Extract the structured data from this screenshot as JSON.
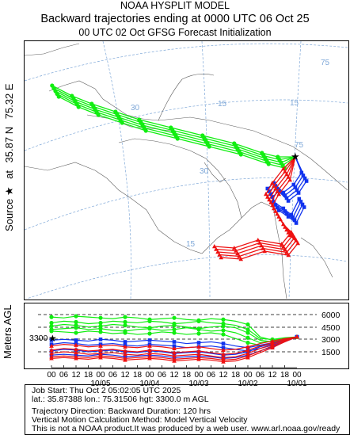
{
  "header": {
    "model": "NOAA HYSPLIT MODEL",
    "title": "Backward trajectories ending at 0000 UTC 06 Oct 25",
    "subtitle": "00 UTC 02 Oct    GFSG  Forecast Initialization"
  },
  "side_label": {
    "source": "Source",
    "at": "at",
    "lat": "35.87 N",
    "lon": "75.32 E",
    "height_axis": "Meters AGL"
  },
  "map": {
    "lat_labels": [
      "30",
      "30",
      "15",
      "15"
    ],
    "lon_labels": [
      "75",
      "75",
      "15"
    ]
  },
  "info": {
    "line1": "Job Start: Thu Oct  2 05:02:05 UTC 2025",
    "line2": "lat.: 35.87388   lon.: 75.31506   hgt: 3300.0 m AGL",
    "line3": "Trajectory Direction: Backward       Duration: 120 hrs",
    "line4": "Vertical Motion Calculation Method: Model Vertical Velocity",
    "line5": "This is not a NOAA product.It was produced by a web user. www.arl.noaa.gov/ready"
  },
  "colors": {
    "red": "#ee1111",
    "blue": "#1133ee",
    "green": "#11ee11"
  },
  "chart_data": {
    "type": "line",
    "title": "Backward trajectories ending at 0000 UTC 06 Oct 25",
    "ylabel": "Meters AGL",
    "yticks": [
      "6000",
      "4500",
      "3000",
      "1500"
    ],
    "source_height_label": "3300",
    "ylim": [
      0,
      6500
    ],
    "hour_ticks": [
      "18",
      "12",
      "06",
      "00",
      "18",
      "12",
      "06",
      "00",
      "18",
      "12",
      "06",
      "00",
      "18",
      "12",
      "06",
      "00",
      "18",
      "12",
      "06",
      "00"
    ],
    "date_ticks": [
      "10/05",
      "10/04",
      "10/03",
      "10/02",
      "10/01"
    ],
    "x_hours_back": [
      0,
      6,
      12,
      18,
      24,
      30,
      36,
      42,
      48,
      54,
      60,
      66,
      72,
      78,
      84,
      90,
      96,
      102,
      108,
      114,
      120
    ],
    "series": [
      {
        "color": "green",
        "values": [
          3300,
          3100,
          2900,
          3300,
          4800,
          5200,
          5400,
          5500,
          5300,
          5400,
          5600,
          5500,
          5400,
          5600,
          5700,
          5500,
          5600,
          5700,
          5800,
          5600,
          5700
        ]
      },
      {
        "color": "green",
        "values": [
          3300,
          3200,
          3000,
          3100,
          4200,
          4700,
          4900,
          5000,
          5200,
          5000,
          4900,
          5100,
          5200,
          5000,
          5100,
          5200,
          5000,
          4900,
          5100,
          5200,
          5000
        ]
      },
      {
        "color": "green",
        "values": [
          3300,
          3000,
          2700,
          2900,
          3800,
          4400,
          4600,
          4500,
          4300,
          4500,
          4700,
          4600,
          4400,
          4500,
          4700,
          4800,
          4600,
          4500,
          4700,
          4800,
          4600
        ]
      },
      {
        "color": "green",
        "values": [
          3300,
          3100,
          2800,
          2600,
          3200,
          3800,
          4100,
          4000,
          4200,
          4400,
          4200,
          4100,
          4300,
          4200,
          4000,
          4100,
          4300,
          4200,
          4400,
          4300,
          4200
        ]
      },
      {
        "color": "green",
        "values": [
          3300,
          2900,
          2500,
          2300,
          2600,
          3100,
          3600,
          3800,
          3700,
          3600,
          3800,
          3900,
          3700,
          3600,
          3800,
          3700,
          3900,
          4000,
          3800,
          3900,
          4000
        ]
      },
      {
        "color": "blue",
        "values": [
          3300,
          3000,
          2600,
          2300,
          2000,
          2200,
          2500,
          2700,
          2600,
          2500,
          2700,
          2800,
          2900,
          2800,
          2700,
          2900,
          3000,
          2800,
          2900,
          3000,
          2900
        ]
      },
      {
        "color": "blue",
        "values": [
          3300,
          2800,
          2300,
          1900,
          1600,
          1800,
          2000,
          2200,
          2100,
          2000,
          2200,
          2300,
          2400,
          2200,
          2300,
          2500,
          2400,
          2300,
          2500,
          2600,
          2400
        ]
      },
      {
        "color": "blue",
        "values": [
          3300,
          2900,
          2500,
          2100,
          1500,
          1200,
          1100,
          1300,
          1500,
          1400,
          1300,
          1500,
          1600,
          1400,
          1500,
          1700,
          1600,
          1500,
          1700,
          1800,
          1600
        ]
      },
      {
        "color": "blue",
        "values": [
          3300,
          2700,
          2100,
          1600,
          1100,
          800,
          700,
          900,
          1000,
          900,
          800,
          1000,
          1100,
          1000,
          900,
          1100,
          1200,
          1000,
          1100,
          1200,
          1100
        ]
      },
      {
        "color": "red",
        "values": [
          3300,
          3100,
          2800,
          2500,
          2100,
          1800,
          1700,
          1900,
          2100,
          2000,
          1900,
          2100,
          2200,
          2000,
          2100,
          2300,
          2200,
          2100,
          2300,
          2400,
          2200
        ]
      },
      {
        "color": "red",
        "values": [
          3300,
          3000,
          2600,
          2200,
          1700,
          1300,
          1200,
          1400,
          1600,
          1500,
          1400,
          1600,
          1700,
          1500,
          1600,
          1800,
          1700,
          1600,
          1800,
          1900,
          1700
        ]
      },
      {
        "color": "red",
        "values": [
          3300,
          2900,
          2400,
          1900,
          1300,
          900,
          800,
          1000,
          1200,
          1100,
          1000,
          1200,
          1300,
          1100,
          1200,
          1400,
          1300,
          1200,
          1400,
          1500,
          1300
        ]
      },
      {
        "color": "red",
        "values": [
          3300,
          2800,
          2200,
          1600,
          1000,
          600,
          500,
          700,
          800,
          700,
          600,
          800,
          900,
          800,
          700,
          900,
          1000,
          800,
          900,
          1000,
          900
        ]
      },
      {
        "color": "red",
        "values": [
          3300,
          2700,
          2000,
          1400,
          800,
          400,
          300,
          500,
          600,
          500,
          400,
          600,
          700,
          600,
          500,
          700,
          800,
          600,
          700,
          800,
          700
        ]
      }
    ]
  }
}
